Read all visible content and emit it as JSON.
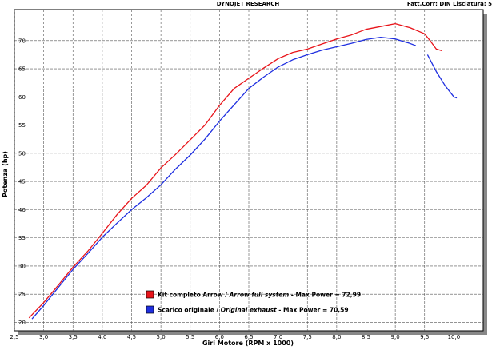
{
  "header": {
    "title": "DYNOJET RESEARCH",
    "correction": "Fatt.Corr: DIN  Lisciatura: 5"
  },
  "chart_data": {
    "type": "line",
    "xlabel": "Giri Motore (RPM x 1000)",
    "ylabel": "Potenza (hp)",
    "xlim": [
      2.5,
      10.5
    ],
    "ylim": [
      18.5,
      75.5
    ],
    "x_ticks": [
      "2,5",
      "3,0",
      "3,5",
      "4,0",
      "4,5",
      "5,0",
      "5,5",
      "6,0",
      "6,5",
      "7,0",
      "7,5",
      "8,0",
      "8,5",
      "9,0",
      "9,5",
      "10,0"
    ],
    "x_tick_values": [
      2.5,
      3.0,
      3.5,
      4.0,
      4.5,
      5.0,
      5.5,
      6.0,
      6.5,
      7.0,
      7.5,
      8.0,
      8.5,
      9.0,
      9.5,
      10.0
    ],
    "y_ticks": [
      "20",
      "25",
      "30",
      "35",
      "40",
      "45",
      "50",
      "55",
      "60",
      "65",
      "70"
    ],
    "y_tick_values": [
      20,
      25,
      30,
      35,
      40,
      45,
      50,
      55,
      60,
      65,
      70
    ],
    "grid": true,
    "legend_position": "bottom-left",
    "series": [
      {
        "name": "Kit completo Arrow / Arrow full system - Max Power = 72,99",
        "legend_plain": "Kit completo Arrow / ",
        "legend_italic": "Arrow full system",
        "legend_suffix": " - Max Power = 72,99",
        "color": "#e8141a",
        "x": [
          2.75,
          3.0,
          3.25,
          3.5,
          3.75,
          4.0,
          4.25,
          4.5,
          4.75,
          5.0,
          5.25,
          5.5,
          5.75,
          6.0,
          6.25,
          6.5,
          6.75,
          7.0,
          7.25,
          7.5,
          7.75,
          8.0,
          8.25,
          8.5,
          8.75,
          9.0,
          9.25,
          9.5,
          9.6,
          9.7,
          9.8
        ],
        "y": [
          20.8,
          23.5,
          26.6,
          29.8,
          32.6,
          35.8,
          39.1,
          42.0,
          44.3,
          47.4,
          49.8,
          52.4,
          55.0,
          58.5,
          61.5,
          63.3,
          65.1,
          66.8,
          67.9,
          68.5,
          69.4,
          70.3,
          71.0,
          72.0,
          72.5,
          73.0,
          72.3,
          71.2,
          69.9,
          68.5,
          68.2
        ]
      },
      {
        "name": "Scarico originale / Original exhaust - Max Power = 70,59",
        "legend_plain": "Scarico originale / ",
        "legend_italic": "Original exhaust",
        "legend_suffix": " - Max Power = 70,59",
        "color": "#1f2fe0",
        "x": [
          2.8,
          3.0,
          3.25,
          3.5,
          3.75,
          4.0,
          4.25,
          4.5,
          4.75,
          5.0,
          5.25,
          5.5,
          5.75,
          6.0,
          6.25,
          6.5,
          6.75,
          7.0,
          7.25,
          7.5,
          7.75,
          8.0,
          8.25,
          8.5,
          8.75,
          9.0,
          9.25,
          9.35,
          null,
          9.55,
          9.7,
          9.85,
          10.0,
          10.05
        ],
        "y": [
          20.6,
          23.0,
          26.2,
          29.4,
          32.2,
          35.1,
          37.6,
          40.0,
          42.1,
          44.4,
          47.2,
          49.7,
          52.5,
          55.7,
          58.6,
          61.5,
          63.5,
          65.3,
          66.6,
          67.5,
          68.3,
          68.9,
          69.5,
          70.2,
          70.6,
          70.3,
          69.5,
          69.1,
          null,
          67.5,
          64.5,
          62.0,
          60.0,
          59.8
        ]
      }
    ]
  }
}
